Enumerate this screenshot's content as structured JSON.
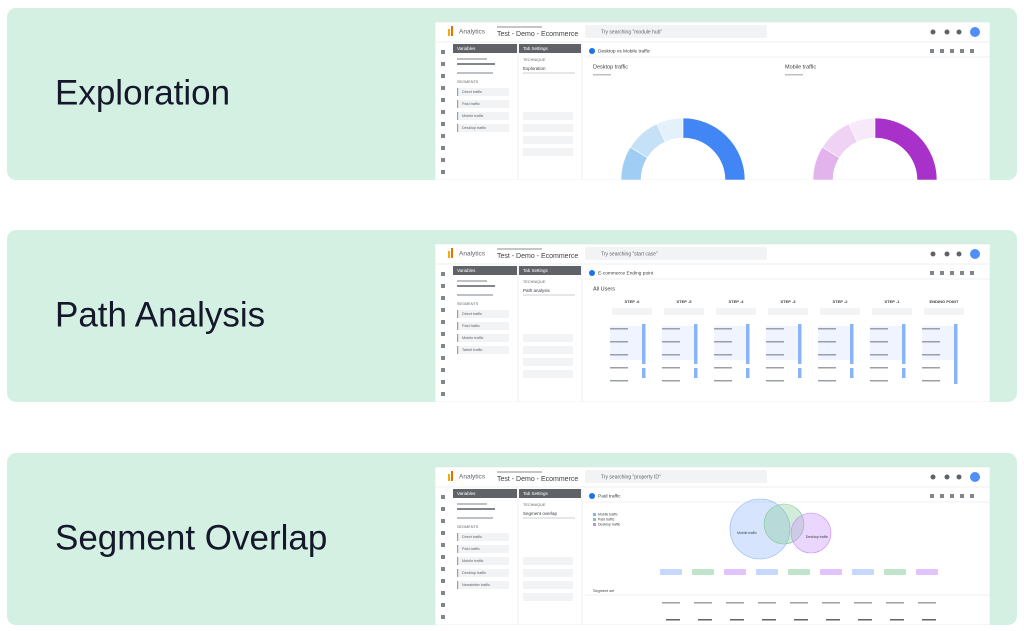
{
  "cards": [
    {
      "title": "Exploration",
      "screenshot": {
        "type": "donuts",
        "app": "Analytics",
        "property": "Test - Demo - Ecommerce",
        "search": "Try searching \"module hub\"",
        "variables": "Variables",
        "settings": "Tab Settings",
        "technique_label": "TECHNIQUE",
        "technique": "Exploration",
        "segments_label": "SEGMENTS",
        "segments": [
          "Direct traffic",
          "Paid traffic",
          "Mobile traffic",
          "Desktop traffic"
        ],
        "tab": "Desktop vs Mobile traffic",
        "charts": [
          "Desktop traffic",
          "Mobile traffic"
        ]
      }
    },
    {
      "title": "Path Analysis",
      "screenshot": {
        "type": "path",
        "app": "Analytics",
        "property": "Test - Demo - Ecommerce",
        "search": "Try searching \"start case\"",
        "variables": "Variables",
        "settings": "Tab Settings",
        "technique_label": "TECHNIQUE",
        "technique": "Path analysis",
        "segments_label": "SEGMENTS",
        "segments": [
          "Direct traffic",
          "Paid traffic",
          "Mobile traffic",
          "Tablet traffic"
        ],
        "tab": "E-commerce Ending point",
        "heading": "All Users",
        "steps": [
          "STEP -6",
          "STEP -5",
          "STEP -4",
          "STEP -3",
          "STEP -2",
          "STEP -1",
          "ENDING POINT"
        ]
      }
    },
    {
      "title": "Segment Overlap",
      "screenshot": {
        "type": "venn",
        "app": "Analytics",
        "property": "Test - Demo - Ecommerce",
        "search": "Try searching \"property ID\"",
        "variables": "Variables",
        "settings": "Tab Settings",
        "technique_label": "TECHNIQUE",
        "technique": "Segment overlap",
        "segments_label": "SEGMENTS",
        "segments": [
          "Direct traffic",
          "Paid traffic",
          "Mobile traffic",
          "Desktop traffic",
          "Newsletter traffic"
        ],
        "tab": "Paid traffic",
        "legend": [
          "Mobile traffic",
          "Paid traffic",
          "Desktop traffic"
        ],
        "venn_labels": [
          "Mobile traffic",
          "Desktop traffic"
        ],
        "row_label": "Segment set"
      }
    }
  ]
}
